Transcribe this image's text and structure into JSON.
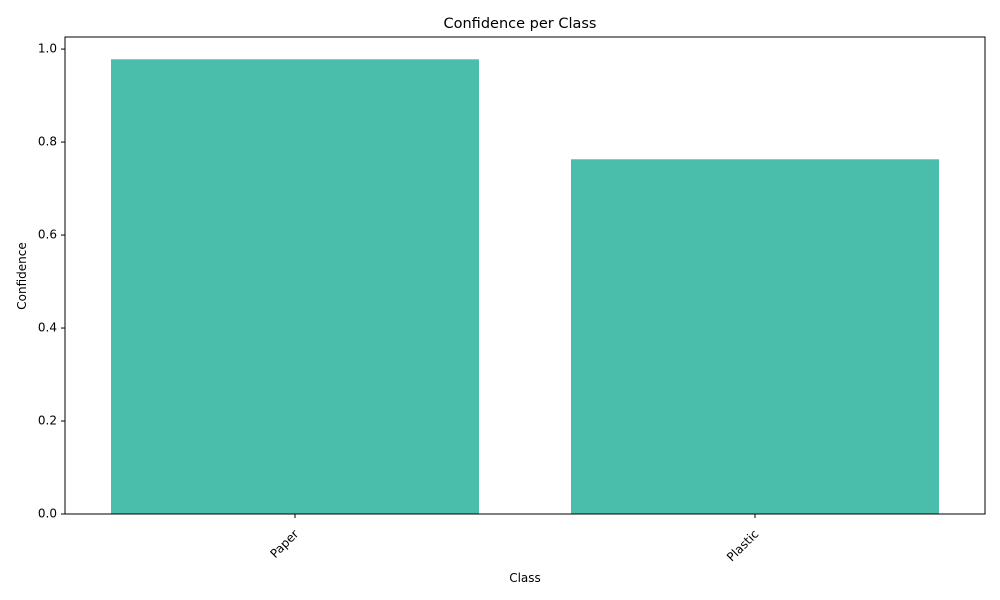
{
  "chart_data": {
    "type": "bar",
    "title": "Confidence per Class",
    "xlabel": "Class",
    "ylabel": "Confidence",
    "categories": [
      "Paper",
      "Plastic"
    ],
    "values": [
      0.978,
      0.763
    ],
    "ylim": [
      0,
      1.026
    ],
    "yticks": [
      "0.0",
      "0.2",
      "0.4",
      "0.6",
      "0.8",
      "1.0"
    ],
    "bar_color": "#4bbdab",
    "xtick_rotation_deg": 45,
    "grid": false,
    "legend": "none"
  }
}
